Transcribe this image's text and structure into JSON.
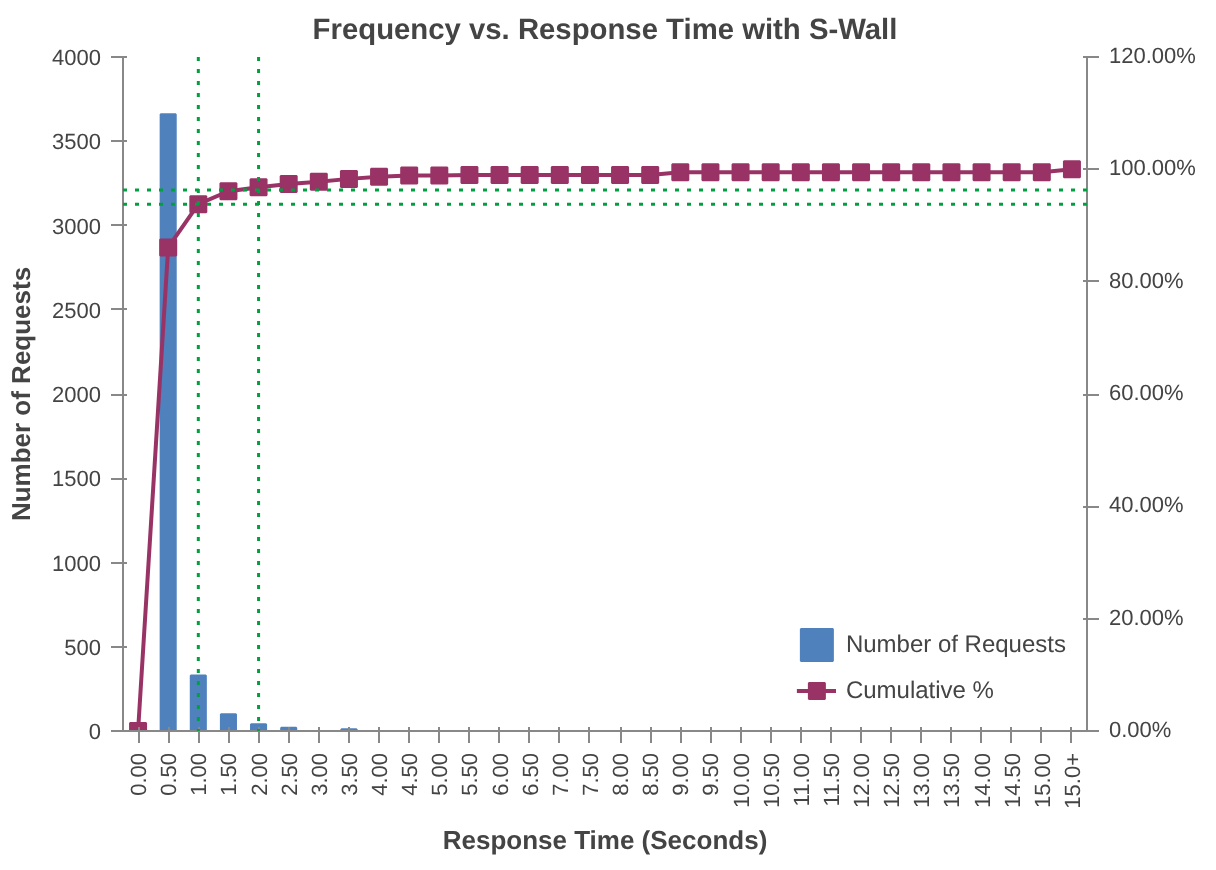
{
  "chart_data": {
    "type": "bar",
    "title": "Frequency vs. Response Time with S-Wall",
    "xlabel": "Response Time (Seconds)",
    "ylabel": "Number of Requests",
    "categories": [
      "0.00",
      "0.50",
      "1.00",
      "1.50",
      "2.00",
      "2.50",
      "3.00",
      "3.50",
      "4.00",
      "4.50",
      "5.00",
      "5.50",
      "6.00",
      "6.50",
      "7.00",
      "7.50",
      "8.00",
      "8.50",
      "9.00",
      "9.50",
      "10.00",
      "10.50",
      "11.00",
      "11.50",
      "12.00",
      "12.50",
      "13.00",
      "13.50",
      "14.00",
      "14.50",
      "15.00",
      "15.0+"
    ],
    "series": [
      {
        "name": "Number of Requests",
        "color": "#4f81bd",
        "values": [
          0,
          3660,
          330,
          100,
          40,
          20,
          0,
          10,
          0,
          0,
          0,
          0,
          0,
          0,
          0,
          0,
          0,
          0,
          0,
          0,
          0,
          0,
          0,
          0,
          0,
          0,
          0,
          0,
          0,
          0,
          0,
          0
        ]
      },
      {
        "name": "Cumulative %",
        "type": "line",
        "axis": "y2",
        "color": "#993366",
        "marker": "square",
        "values": [
          0,
          86.1,
          93.8,
          96.1,
          96.8,
          97.4,
          97.8,
          98.3,
          98.7,
          98.9,
          98.9,
          99,
          99,
          99,
          99,
          99,
          99,
          99,
          99.5,
          99.5,
          99.5,
          99.5,
          99.5,
          99.5,
          99.5,
          99.5,
          99.5,
          99.5,
          99.5,
          99.5,
          99.5,
          100
        ]
      }
    ],
    "ylim": [
      0,
      4000
    ],
    "yticks": [
      0,
      500,
      1000,
      1500,
      2000,
      2500,
      3000,
      3500,
      4000
    ],
    "y2lim": [
      0,
      120
    ],
    "y2ticks": [
      {
        "value": 0,
        "label": "0.00%"
      },
      {
        "value": 20,
        "label": "20.00%"
      },
      {
        "value": 40,
        "label": "40.00%"
      },
      {
        "value": 60,
        "label": "60.00%"
      },
      {
        "value": 80,
        "label": "80.00%"
      },
      {
        "value": 100,
        "label": "100.00%"
      },
      {
        "value": 120,
        "label": "120.00%"
      }
    ],
    "ref_lines": [
      {
        "axis": "x",
        "value": "1.00",
        "color": "#00a040",
        "line_style": "dotted"
      },
      {
        "axis": "x",
        "value": "2.00",
        "color": "#00a040",
        "line_style": "dotted"
      },
      {
        "axis": "y2",
        "value": 93.8,
        "color": "#00a040",
        "line_style": "dotted"
      },
      {
        "axis": "y2",
        "value": 96.3,
        "color": "#00a040",
        "line_style": "dotted"
      }
    ],
    "legend": "bottom right",
    "grid": false
  }
}
